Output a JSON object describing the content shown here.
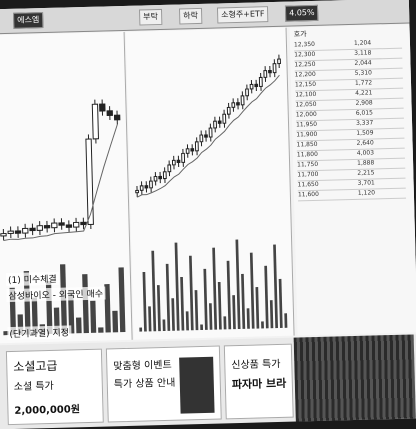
{
  "topbar": {
    "tabs": [
      "에스엠",
      "부탁",
      "하락",
      "소형주+ETF",
      "4.05%"
    ]
  },
  "left_panel": {
    "overlay1": "(1) 미수체결",
    "overlay2": "삼성바이오 - 외국인 매수",
    "overlay3": "(단기과열) 지정"
  },
  "orderbook": {
    "header": "호가",
    "rows": [
      [
        "12,350",
        "1,204"
      ],
      [
        "12,300",
        "3,118"
      ],
      [
        "12,250",
        "2,044"
      ],
      [
        "12,200",
        "5,310"
      ],
      [
        "12,150",
        "1,772"
      ],
      [
        "12,100",
        "4,221"
      ],
      [
        "12,050",
        "2,908"
      ],
      [
        "12,000",
        "6,015"
      ],
      [
        "11,950",
        "3,337"
      ],
      [
        "11,900",
        "1,509"
      ],
      [
        "11,850",
        "2,640"
      ],
      [
        "11,800",
        "4,003"
      ],
      [
        "11,750",
        "1,888"
      ],
      [
        "11,700",
        "2,215"
      ],
      [
        "11,650",
        "3,701"
      ],
      [
        "11,600",
        "1,120"
      ]
    ]
  },
  "ads": {
    "left_title": "소셜고급",
    "left_sub": "소셜 특가",
    "left_price": "2,000,000원",
    "mid_title": "맞춤형 이벤트",
    "mid_sub": "특가 상품 안내",
    "right_title": "파자마 브라",
    "right_sub": "신상품 특가"
  },
  "chart_data": {
    "type": "candlestick",
    "panels": [
      "left",
      "main"
    ],
    "main_closes": [
      42,
      44,
      43,
      46,
      48,
      47,
      50,
      53,
      55,
      54,
      58,
      60,
      59,
      63,
      66,
      65,
      69,
      72,
      71,
      75,
      78,
      80,
      79,
      83,
      86,
      88,
      87,
      91,
      94,
      93,
      97,
      99
    ]
  }
}
